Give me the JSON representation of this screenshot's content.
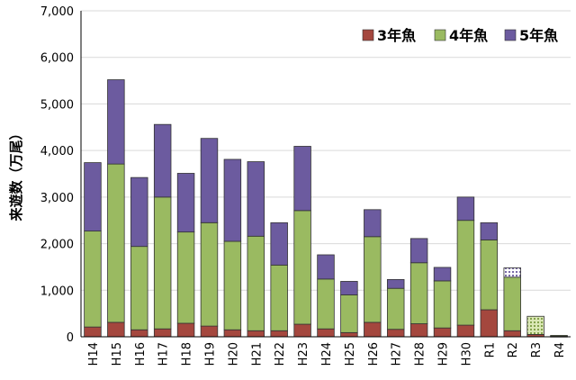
{
  "chart_data": {
    "type": "bar",
    "stacked": true,
    "ylabel": "来遊数（万尾）",
    "ylim": [
      0,
      7000
    ],
    "yticks": [
      "0",
      "1,000",
      "2,000",
      "3,000",
      "4,000",
      "5,000",
      "6,000",
      "7,000"
    ],
    "ytick_values": [
      0,
      1000,
      2000,
      3000,
      4000,
      5000,
      6000,
      7000
    ],
    "grid": true,
    "legend_position": "top-right",
    "categories": [
      "H14",
      "H15",
      "H16",
      "H17",
      "H18",
      "H19",
      "H20",
      "H21",
      "H22",
      "H23",
      "H24",
      "H25",
      "H26",
      "H27",
      "H28",
      "H29",
      "H30",
      "R1",
      "R2",
      "R3",
      "R4"
    ],
    "series": [
      {
        "name": "3年魚",
        "color": "#a4473e",
        "values": [
          210,
          310,
          150,
          170,
          290,
          230,
          150,
          130,
          130,
          270,
          170,
          90,
          310,
          160,
          280,
          190,
          250,
          580,
          130,
          50,
          10
        ]
      },
      {
        "name": "4年魚",
        "color": "#9aba61",
        "values": [
          2060,
          3400,
          1790,
          2830,
          1960,
          2220,
          1900,
          2030,
          1410,
          2440,
          1070,
          810,
          1840,
          880,
          1310,
          1010,
          2250,
          1500,
          1150,
          390,
          20
        ]
      },
      {
        "name": "5年魚",
        "color": "#6c5b9f",
        "values": [
          1470,
          1810,
          1480,
          1560,
          1260,
          1810,
          1760,
          1600,
          910,
          1380,
          520,
          290,
          580,
          190,
          520,
          290,
          500,
          370,
          200,
          0,
          0
        ]
      }
    ],
    "patterned_categories": [
      "R2",
      "R3",
      "R4"
    ]
  }
}
